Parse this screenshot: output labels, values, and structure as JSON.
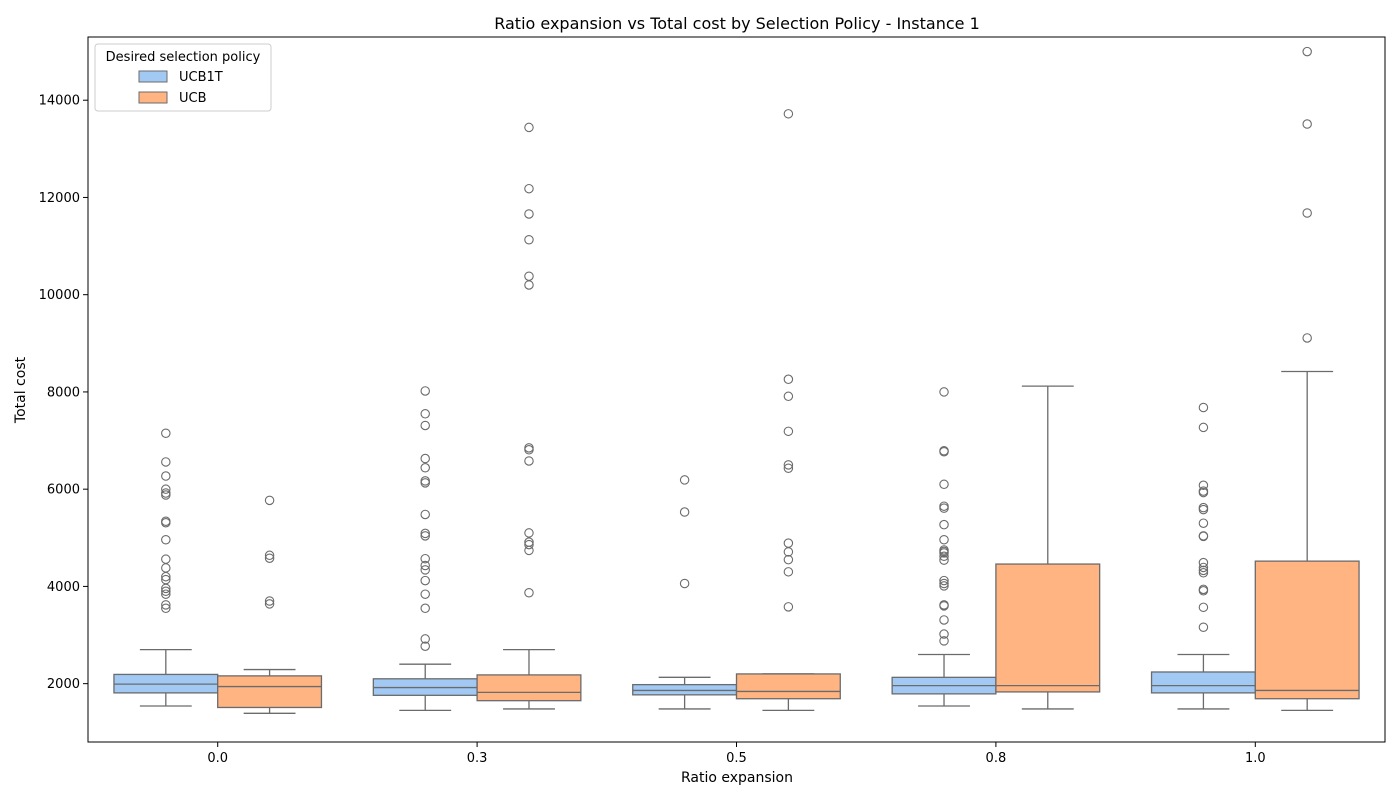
{
  "chart_data": {
    "type": "box",
    "title": "Ratio expansion vs Total cost by Selection Policy - Instance 1",
    "xlabel": "Ratio expansion",
    "ylabel": "Total cost",
    "categories": [
      "0.0",
      "0.3",
      "0.5",
      "0.8",
      "1.0"
    ],
    "ylim": [
      800,
      15300
    ],
    "yticks": [
      2000,
      4000,
      6000,
      8000,
      10000,
      12000,
      14000
    ],
    "grid": false,
    "legend": {
      "title": "Desired selection policy",
      "position": "top-left"
    },
    "series": [
      {
        "name": "UCB1T",
        "color": "#a1c9f4",
        "boxes": [
          {
            "whislo": 1540,
            "q1": 1810,
            "med": 1990,
            "q3": 2190,
            "whishi": 2700,
            "fliers": [
              3550,
              3620,
              3840,
              3900,
              3960,
              4140,
              4200,
              4380,
              4560,
              4960,
              5310,
              5340,
              5880,
              5920,
              6000,
              6270,
              6560,
              7150
            ]
          },
          {
            "whislo": 1450,
            "q1": 1760,
            "med": 1920,
            "q3": 2100,
            "whishi": 2400,
            "fliers": [
              2770,
              2920,
              3550,
              3840,
              4120,
              4340,
              4430,
              4570,
              5040,
              5090,
              5480,
              6130,
              6170,
              6440,
              6630,
              7310,
              7550,
              8020
            ]
          },
          {
            "whislo": 1480,
            "q1": 1770,
            "med": 1860,
            "q3": 1980,
            "whishi": 2130,
            "fliers": [
              4060,
              5530,
              6190
            ]
          },
          {
            "whislo": 1540,
            "q1": 1790,
            "med": 1960,
            "q3": 2130,
            "whishi": 2600,
            "fliers": [
              2880,
              3020,
              3310,
              3600,
              3620,
              4010,
              4060,
              4120,
              4540,
              4620,
              4690,
              4720,
              4750,
              4960,
              5270,
              5610,
              5650,
              6100,
              6770,
              6790,
              8000
            ]
          },
          {
            "whislo": 1480,
            "q1": 1810,
            "med": 1960,
            "q3": 2240,
            "whishi": 2600,
            "fliers": [
              3160,
              3570,
              3910,
              3940,
              4280,
              4330,
              4390,
              4490,
              5030,
              5040,
              5300,
              5580,
              5620,
              5930,
              5960,
              6080,
              7270,
              7680
            ]
          }
        ]
      },
      {
        "name": "UCB",
        "color": "#ffb482",
        "boxes": [
          {
            "whislo": 1390,
            "q1": 1510,
            "med": 1940,
            "q3": 2160,
            "whishi": 2290,
            "fliers": [
              3640,
              3700,
              4580,
              4640,
              5770
            ]
          },
          {
            "whislo": 1480,
            "q1": 1650,
            "med": 1820,
            "q3": 2180,
            "whishi": 2700,
            "fliers": [
              3870,
              4740,
              4860,
              4910,
              5100,
              6580,
              6810,
              6850,
              10200,
              10380,
              11130,
              11660,
              12180,
              13440
            ]
          },
          {
            "whislo": 1450,
            "q1": 1690,
            "med": 1840,
            "q3": 2200,
            "whishi": 2200,
            "fliers": [
              3580,
              4300,
              4550,
              4710,
              4890,
              6430,
              6500,
              7190,
              7910,
              8260,
              13720
            ]
          },
          {
            "whislo": 1480,
            "q1": 1830,
            "med": 1960,
            "q3": 4460,
            "whishi": 8120,
            "fliers": []
          },
          {
            "whislo": 1450,
            "q1": 1690,
            "med": 1860,
            "q3": 4520,
            "whishi": 8420,
            "fliers": [
              9110,
              11680,
              13510,
              15000
            ]
          }
        ]
      }
    ]
  }
}
